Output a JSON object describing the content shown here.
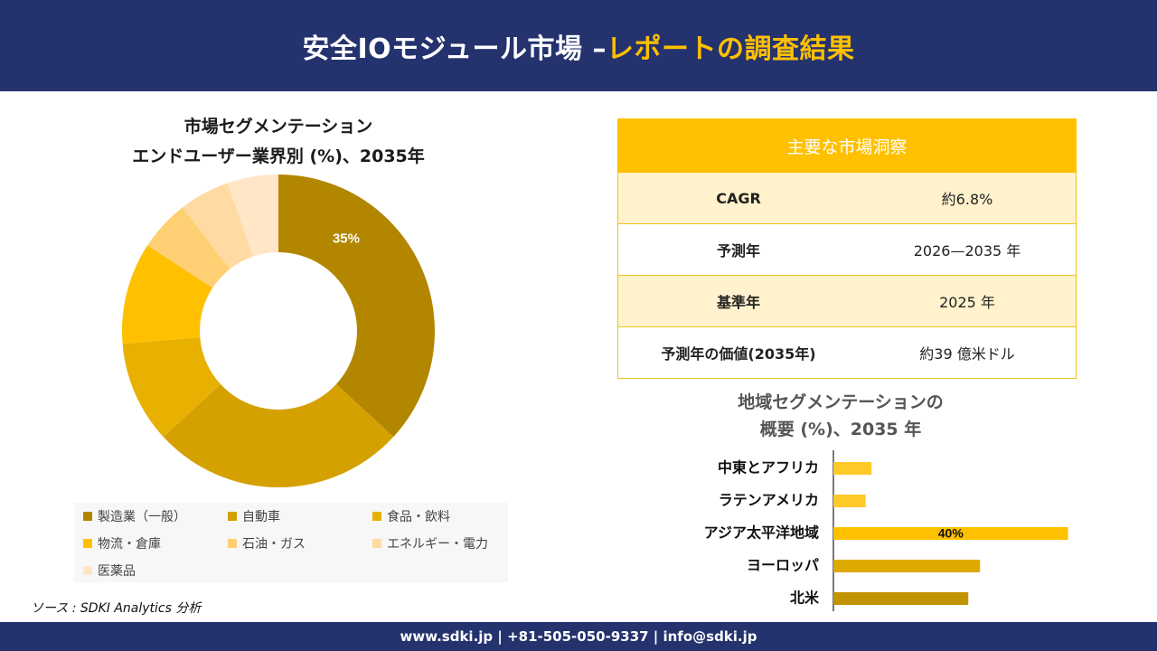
{
  "header": {
    "title_main": "安全IOモジュール市場 –",
    "title_accent": "レポートの調査結果"
  },
  "chart_data": [
    {
      "type": "pie",
      "title": "市場セグメンテーション",
      "subtitle": "エンドユーザー業界別 (%)、2035年",
      "categories": [
        "製造業（一般）",
        "自動車",
        "食品・飲料",
        "物流・倉庫",
        "石油・ガス",
        "エネルギー・電力",
        "医薬品"
      ],
      "values": [
        35,
        25,
        10,
        10,
        5,
        5,
        5
      ],
      "data_labels": [
        "35%",
        "",
        "",
        "",
        "",
        "",
        ""
      ],
      "colors": [
        "#b38600",
        "#d4a100",
        "#e8b000",
        "#ffc000",
        "#ffcf73",
        "#ffdba3",
        "#ffe6c7"
      ],
      "legend_position": "bottom"
    },
    {
      "type": "bar",
      "orientation": "horizontal",
      "title": "地域セグメンテーションの",
      "subtitle": "概要 (%)、2035 年",
      "categories": [
        "中東とアフリカ",
        "ラテンアメリカ",
        "アジア太平洋地域",
        "ヨーロッパ",
        "北米"
      ],
      "values": [
        6.5,
        5.5,
        40,
        25,
        23
      ],
      "data_labels": [
        "",
        "",
        "40%",
        "",
        ""
      ],
      "colors": [
        "#ffc928",
        "#ffc928",
        "#ffc000",
        "#deaa00",
        "#c29300"
      ],
      "xlim": [
        0,
        45
      ]
    }
  ],
  "insights": {
    "title": "主要な市場洞察",
    "rows": [
      {
        "key": "CAGR",
        "value": "約6.8%"
      },
      {
        "key": "予測年",
        "value": "2026—2035 年"
      },
      {
        "key": "基準年",
        "value": "2025 年"
      },
      {
        "key": "予測年の価値(2035年)",
        "value": "約39 億米ドル"
      }
    ]
  },
  "source": "ソース : SDKI Analytics 分析",
  "footer": {
    "text": "www.sdki.jp | +81-505-050-9337 | info@sdki.jp"
  }
}
